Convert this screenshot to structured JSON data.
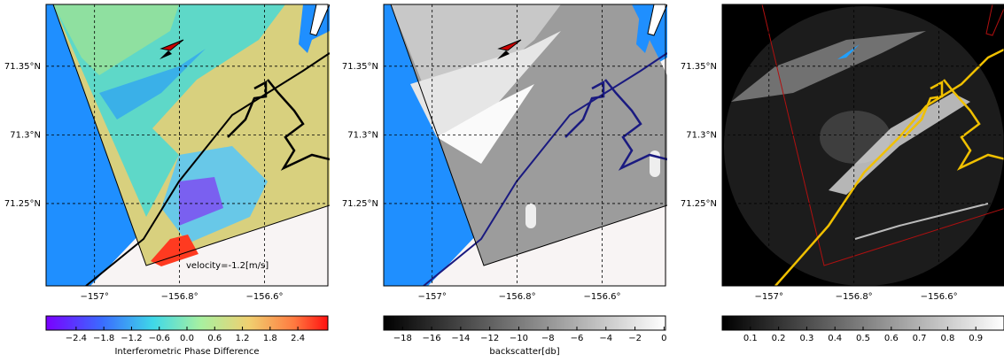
{
  "panels": [
    {
      "xlim": [
        -157.114,
        -156.451
      ],
      "ylim": [
        71.19,
        71.395
      ],
      "xticks": [
        {
          "value": -157,
          "label": "−157°"
        },
        {
          "value": -156.8,
          "label": "−156.8°"
        },
        {
          "value": -156.6,
          "label": "−156.6°"
        }
      ],
      "yticks": [
        {
          "value": 71.25,
          "label": "71.25°N"
        },
        {
          "value": 71.3,
          "label": "71.3°N"
        },
        {
          "value": 71.35,
          "label": "71.35°N"
        }
      ],
      "annotation": "velocity=-1.2[m/s]",
      "colorbar": {
        "lim": [
          -3.05,
          3.05
        ],
        "ticks": [
          {
            "value": -2.4,
            "label": "−2.4"
          },
          {
            "value": -1.8,
            "label": "−1.8"
          },
          {
            "value": -1.2,
            "label": "−1.2"
          },
          {
            "value": -0.6,
            "label": "−0.6"
          },
          {
            "value": 0,
            "label": "0.0"
          },
          {
            "value": 0.6,
            "label": "0.6"
          },
          {
            "value": 1.2,
            "label": "1.2"
          },
          {
            "value": 1.8,
            "label": "1.8"
          },
          {
            "value": 2.4,
            "label": "2.4"
          }
        ],
        "label": "Interferometric Phase Difference"
      }
    },
    {
      "xlim": [
        -157.114,
        -156.451
      ],
      "ylim": [
        71.19,
        71.395
      ],
      "xticks": [
        {
          "value": -157,
          "label": "−157°"
        },
        {
          "value": -156.8,
          "label": "−156.8°"
        },
        {
          "value": -156.6,
          "label": "−156.6°"
        }
      ],
      "yticks": [
        {
          "value": 71.25,
          "label": "71.25°N"
        },
        {
          "value": 71.3,
          "label": "71.3°N"
        },
        {
          "value": 71.35,
          "label": "71.35°N"
        }
      ],
      "colorbar": {
        "lim": [
          -19.3,
          0.1
        ],
        "ticks": [
          {
            "value": -18,
            "label": "−18"
          },
          {
            "value": -16,
            "label": "−16"
          },
          {
            "value": -14,
            "label": "−14"
          },
          {
            "value": -12,
            "label": "−12"
          },
          {
            "value": -10,
            "label": "−10"
          },
          {
            "value": -8,
            "label": "−8"
          },
          {
            "value": -6,
            "label": "−6"
          },
          {
            "value": -4,
            "label": "−4"
          },
          {
            "value": -2,
            "label": "−2"
          },
          0
        ],
        "label": "backscatter[db]"
      }
    },
    {
      "xlim": [
        -157.11,
        -156.447
      ],
      "ylim": [
        71.19,
        71.395
      ],
      "xticks": [
        {
          "value": -157,
          "label": "−157°"
        },
        {
          "value": -156.8,
          "label": "−156.8°"
        },
        {
          "value": -156.6,
          "label": "−156.6°"
        }
      ],
      "yticks": [
        {
          "value": 71.25,
          "label": "71.25°N"
        },
        {
          "value": 71.3,
          "label": "71.3°N"
        },
        {
          "value": 71.35,
          "label": "71.35°N"
        }
      ],
      "colorbar": {
        "lim": [
          0.0,
          1.0
        ],
        "ticks": [
          0.1,
          0.2,
          0.3,
          0.4,
          0.5,
          0.6,
          0.7,
          0.8,
          0.9
        ]
      }
    }
  ]
}
